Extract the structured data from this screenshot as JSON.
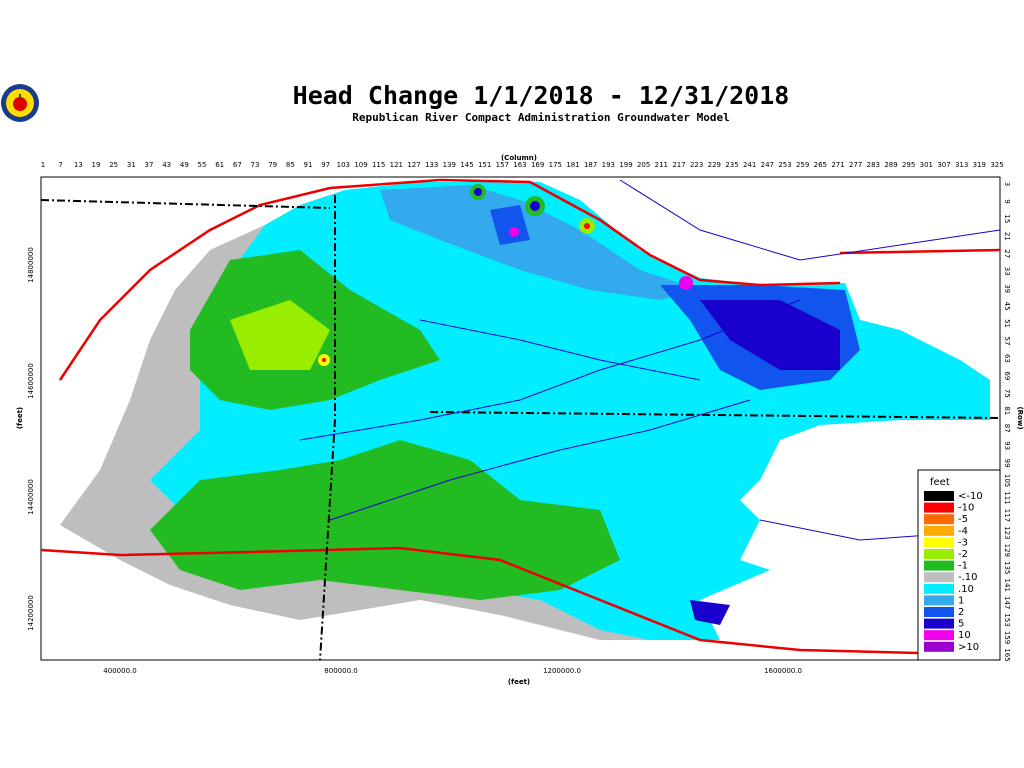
{
  "map": {
    "title": "Head Change 1/1/2018 - 12/31/2018",
    "subtitle": "Republican River Compact Administration Groundwater Model",
    "top_axis_label": "(Column)",
    "right_axis_label": "(Row)",
    "left_axis_label": "(feet)",
    "bottom_axis_label": "(feet)",
    "column_ticks": [
      1,
      7,
      13,
      19,
      25,
      31,
      37,
      43,
      49,
      55,
      61,
      67,
      73,
      79,
      85,
      91,
      97,
      103,
      109,
      115,
      121,
      127,
      133,
      139,
      145,
      151,
      157,
      163,
      169,
      175,
      181,
      187,
      193,
      199,
      205,
      211,
      217,
      223,
      229,
      235,
      241,
      247,
      253,
      259,
      265,
      271,
      277,
      283,
      289,
      295,
      301,
      307,
      313,
      319,
      325
    ],
    "row_ticks": [
      3,
      9,
      15,
      21,
      27,
      33,
      39,
      45,
      51,
      57,
      63,
      69,
      75,
      81,
      87,
      93,
      99,
      105,
      111,
      117,
      123,
      129,
      135,
      141,
      147,
      153,
      159,
      165
    ],
    "y_ticks": [
      14800000,
      14600000,
      14400000,
      14200000
    ],
    "x_ticks": [
      "400000.0",
      "800000.0",
      "1200000.0",
      "1600000.0"
    ],
    "legend": {
      "title": "feet",
      "items": [
        {
          "label": "<-10",
          "color": "#000000"
        },
        {
          "label": "-10",
          "color": "#ff0000"
        },
        {
          "label": "-5",
          "color": "#ff6a00"
        },
        {
          "label": "-4",
          "color": "#ffaa00"
        },
        {
          "label": "-3",
          "color": "#ffff00"
        },
        {
          "label": "-2",
          "color": "#99ee00"
        },
        {
          "label": "-1",
          "color": "#22bb22"
        },
        {
          "label": "-.10",
          "color": "#bebebe"
        },
        {
          "label": ".10",
          "color": "#00eeff"
        },
        {
          "label": "1",
          "color": "#33aaee"
        },
        {
          "label": "2",
          "color": "#1155ee"
        },
        {
          "label": "5",
          "color": "#1a00cc"
        },
        {
          "label": "10",
          "color": "#ee00ee"
        },
        {
          "label": ">10",
          "color": "#9900cc"
        }
      ]
    }
  }
}
